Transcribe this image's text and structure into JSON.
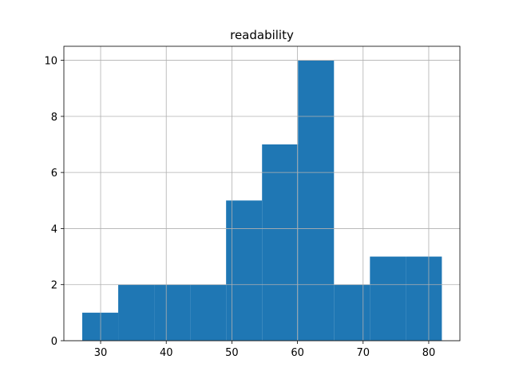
{
  "chart_data": {
    "type": "histogram",
    "title": "readability",
    "bins": [
      27.2,
      32.68,
      38.16,
      43.64,
      49.12,
      54.6,
      60.08,
      65.56,
      71.04,
      76.52,
      82.0
    ],
    "values": [
      1,
      2,
      2,
      2,
      5,
      7,
      10,
      2,
      3,
      3
    ],
    "color": "#1f77b4",
    "xlim": [
      24.4,
      84.75
    ],
    "xticks": [
      30,
      40,
      50,
      60,
      70,
      80
    ],
    "ylim": [
      0,
      10.5
    ],
    "yticks": [
      0,
      2,
      4,
      6,
      8,
      10
    ],
    "grid": true
  }
}
